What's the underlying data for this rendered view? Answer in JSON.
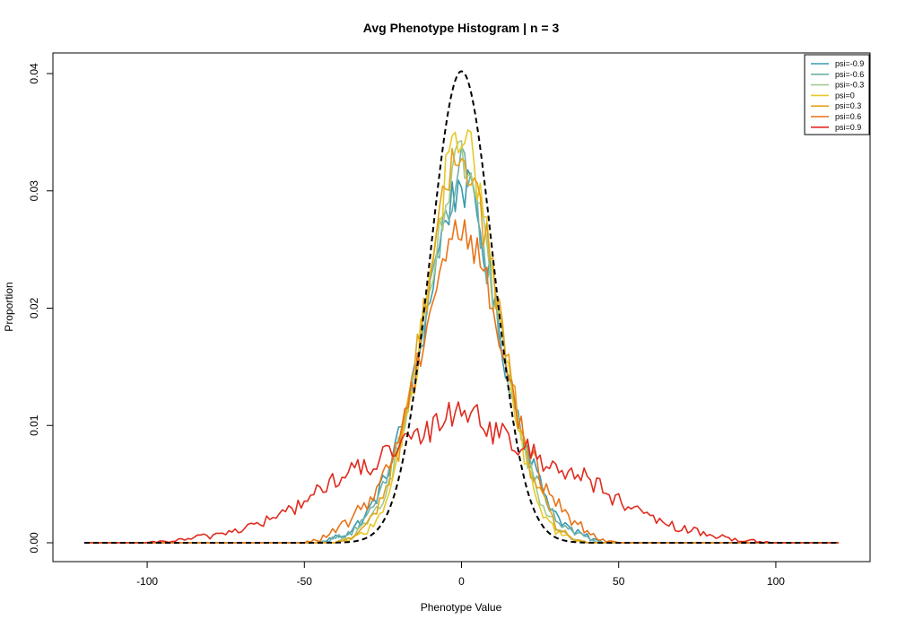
{
  "chart_data": {
    "type": "line",
    "title": "Avg Phenotype Histogram | n = 3",
    "xlabel": "Phenotype Value",
    "ylabel": "Proportion",
    "xlim": [
      -120,
      120
    ],
    "ylim": [
      0,
      0.04
    ],
    "xticks": [
      -100,
      -50,
      0,
      50,
      100
    ],
    "yticks": [
      0.0,
      0.01,
      0.02,
      0.03,
      0.04
    ],
    "xtick_labels": [
      "-100",
      "-50",
      "0",
      "50",
      "100"
    ],
    "ytick_labels": [
      "0.00",
      "0.01",
      "0.02",
      "0.03",
      "0.04"
    ],
    "grid": false,
    "legend_position": "top-right",
    "series": [
      {
        "name": "psi=-0.9",
        "color": "#3a9ab0",
        "x": [
          -120,
          -45,
          -40,
          -35,
          -30,
          -25,
          -20,
          -15,
          -10,
          -5,
          0,
          5,
          10,
          15,
          20,
          25,
          30,
          35,
          40,
          45,
          120
        ],
        "y": [
          0,
          0,
          0.0005,
          0.001,
          0.0025,
          0.005,
          0.009,
          0.014,
          0.021,
          0.028,
          0.031,
          0.028,
          0.021,
          0.014,
          0.009,
          0.005,
          0.0025,
          0.001,
          0.0005,
          0,
          0
        ]
      },
      {
        "name": "psi=-0.6",
        "color": "#6fb0a8",
        "x": [
          -120,
          -45,
          -40,
          -35,
          -30,
          -25,
          -20,
          -15,
          -10,
          -5,
          0,
          5,
          10,
          15,
          20,
          25,
          30,
          35,
          40,
          45,
          120
        ],
        "y": [
          0,
          0,
          0.0004,
          0.001,
          0.002,
          0.0045,
          0.0085,
          0.014,
          0.021,
          0.028,
          0.032,
          0.028,
          0.021,
          0.014,
          0.0085,
          0.0045,
          0.002,
          0.001,
          0.0004,
          0,
          0
        ]
      },
      {
        "name": "psi=-0.3",
        "color": "#a5c98a",
        "x": [
          -120,
          -40,
          -35,
          -30,
          -25,
          -20,
          -15,
          -10,
          -5,
          0,
          5,
          10,
          15,
          20,
          25,
          30,
          35,
          40,
          120
        ],
        "y": [
          0,
          0,
          0.0005,
          0.0015,
          0.004,
          0.008,
          0.014,
          0.021,
          0.029,
          0.033,
          0.029,
          0.021,
          0.014,
          0.008,
          0.004,
          0.0015,
          0.0005,
          0,
          0
        ]
      },
      {
        "name": "psi=0",
        "color": "#e7c928",
        "x": [
          -120,
          -40,
          -35,
          -30,
          -25,
          -20,
          -15,
          -10,
          -5,
          0,
          5,
          10,
          15,
          20,
          25,
          30,
          35,
          40,
          120
        ],
        "y": [
          0,
          0,
          0.0003,
          0.001,
          0.003,
          0.007,
          0.014,
          0.023,
          0.031,
          0.036,
          0.031,
          0.023,
          0.014,
          0.007,
          0.003,
          0.001,
          0.0003,
          0,
          0
        ]
      },
      {
        "name": "psi=0.3",
        "color": "#e3a21a",
        "x": [
          -120,
          -40,
          -35,
          -30,
          -25,
          -20,
          -15,
          -10,
          -5,
          0,
          5,
          10,
          15,
          20,
          25,
          30,
          35,
          40,
          120
        ],
        "y": [
          0,
          0,
          0.0004,
          0.0015,
          0.004,
          0.008,
          0.015,
          0.023,
          0.03,
          0.034,
          0.03,
          0.023,
          0.015,
          0.008,
          0.004,
          0.0015,
          0.0004,
          0,
          0
        ]
      },
      {
        "name": "psi=0.6",
        "color": "#e7741a",
        "x": [
          -120,
          -50,
          -45,
          -40,
          -35,
          -30,
          -25,
          -20,
          -15,
          -10,
          -5,
          0,
          5,
          10,
          15,
          20,
          25,
          30,
          35,
          40,
          45,
          50,
          120
        ],
        "y": [
          0,
          0,
          0.0003,
          0.001,
          0.002,
          0.0035,
          0.0055,
          0.009,
          0.014,
          0.02,
          0.025,
          0.027,
          0.025,
          0.02,
          0.014,
          0.009,
          0.0055,
          0.0035,
          0.002,
          0.001,
          0.0003,
          0,
          0
        ]
      },
      {
        "name": "psi=0.9",
        "color": "#e02b20",
        "x": [
          -120,
          -100,
          -90,
          -80,
          -70,
          -60,
          -50,
          -40,
          -30,
          -20,
          -10,
          -5,
          0,
          5,
          10,
          20,
          30,
          40,
          50,
          60,
          70,
          80,
          90,
          100,
          120
        ],
        "y": [
          0,
          0,
          0.0002,
          0.0006,
          0.0012,
          0.002,
          0.0035,
          0.0055,
          0.0065,
          0.008,
          0.0095,
          0.011,
          0.0115,
          0.011,
          0.0095,
          0.008,
          0.0065,
          0.0055,
          0.0035,
          0.002,
          0.0012,
          0.0006,
          0.0002,
          0,
          0
        ]
      }
    ],
    "reference_curve": {
      "name": "",
      "color": "#000000",
      "style": "dashed",
      "distribution": "normal",
      "mean": 0,
      "sd": 10
    }
  }
}
